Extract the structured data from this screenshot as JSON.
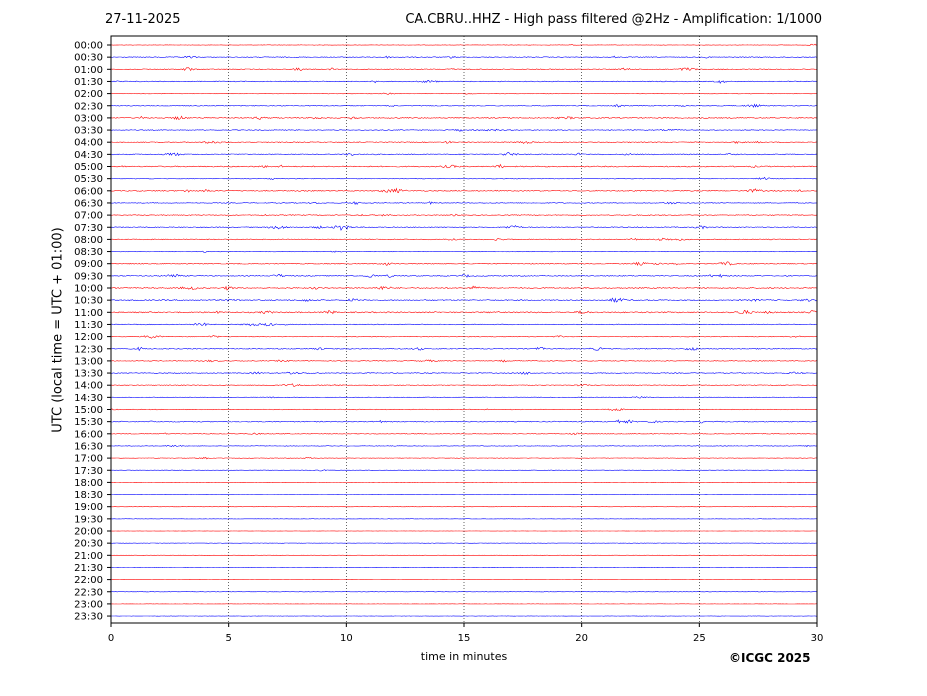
{
  "header": {
    "date": "27-11-2025",
    "title": "CA.CBRU..HHZ - High pass filtered @2Hz - Amplification: 1/1000"
  },
  "footer": {
    "copyright": "©ICGC 2025"
  },
  "chart_data": {
    "type": "line",
    "xlabel": "time in minutes",
    "ylabel": "UTC (local time = UTC + 01:00)",
    "xlim": [
      0,
      30
    ],
    "x_ticks": [
      "0",
      "5",
      "10",
      "15",
      "20",
      "25",
      "30"
    ],
    "grid_vertical": "dotted at 5-minute intervals",
    "row_colors": [
      "#ff0000",
      "#0000ff"
    ],
    "rows": [
      {
        "label": "00:00",
        "activity": 0.2
      },
      {
        "label": "00:30",
        "activity": 0.6
      },
      {
        "label": "01:00",
        "activity": 0.7
      },
      {
        "label": "01:30",
        "activity": 0.6
      },
      {
        "label": "02:00",
        "activity": 0.3
      },
      {
        "label": "02:30",
        "activity": 0.5
      },
      {
        "label": "03:00",
        "activity": 0.8
      },
      {
        "label": "03:30",
        "activity": 0.5
      },
      {
        "label": "04:00",
        "activity": 0.6
      },
      {
        "label": "04:30",
        "activity": 0.7
      },
      {
        "label": "05:00",
        "activity": 0.8
      },
      {
        "label": "05:30",
        "activity": 0.3
      },
      {
        "label": "06:00",
        "activity": 0.8
      },
      {
        "label": "06:30",
        "activity": 0.5
      },
      {
        "label": "07:00",
        "activity": 0.6
      },
      {
        "label": "07:30",
        "activity": 0.7
      },
      {
        "label": "08:00",
        "activity": 0.6
      },
      {
        "label": "08:30",
        "activity": 0.3
      },
      {
        "label": "09:00",
        "activity": 0.7
      },
      {
        "label": "09:30",
        "activity": 0.7
      },
      {
        "label": "10:00",
        "activity": 0.8
      },
      {
        "label": "10:30",
        "activity": 0.9
      },
      {
        "label": "11:00",
        "activity": 1.0
      },
      {
        "label": "11:30",
        "activity": 0.5
      },
      {
        "label": "12:00",
        "activity": 0.5
      },
      {
        "label": "12:30",
        "activity": 0.7
      },
      {
        "label": "13:00",
        "activity": 0.5
      },
      {
        "label": "13:30",
        "activity": 0.6
      },
      {
        "label": "14:00",
        "activity": 0.5
      },
      {
        "label": "14:30",
        "activity": 0.3
      },
      {
        "label": "15:00",
        "activity": 0.4
      },
      {
        "label": "15:30",
        "activity": 0.7
      },
      {
        "label": "16:00",
        "activity": 0.4
      },
      {
        "label": "16:30",
        "activity": 0.3
      },
      {
        "label": "17:00",
        "activity": 0.2
      },
      {
        "label": "17:30",
        "activity": 0.1
      },
      {
        "label": "18:00",
        "activity": 0.05
      },
      {
        "label": "18:30",
        "activity": 0.05
      },
      {
        "label": "19:00",
        "activity": 0.05
      },
      {
        "label": "19:30",
        "activity": 0.05
      },
      {
        "label": "20:00",
        "activity": 0.05
      },
      {
        "label": "20:30",
        "activity": 0.05
      },
      {
        "label": "21:00",
        "activity": 0.05
      },
      {
        "label": "21:30",
        "activity": 0.05
      },
      {
        "label": "22:00",
        "activity": 0.05
      },
      {
        "label": "22:30",
        "activity": 0.05
      },
      {
        "label": "23:00",
        "activity": 0.05
      },
      {
        "label": "23:30",
        "activity": 0.05
      }
    ]
  }
}
